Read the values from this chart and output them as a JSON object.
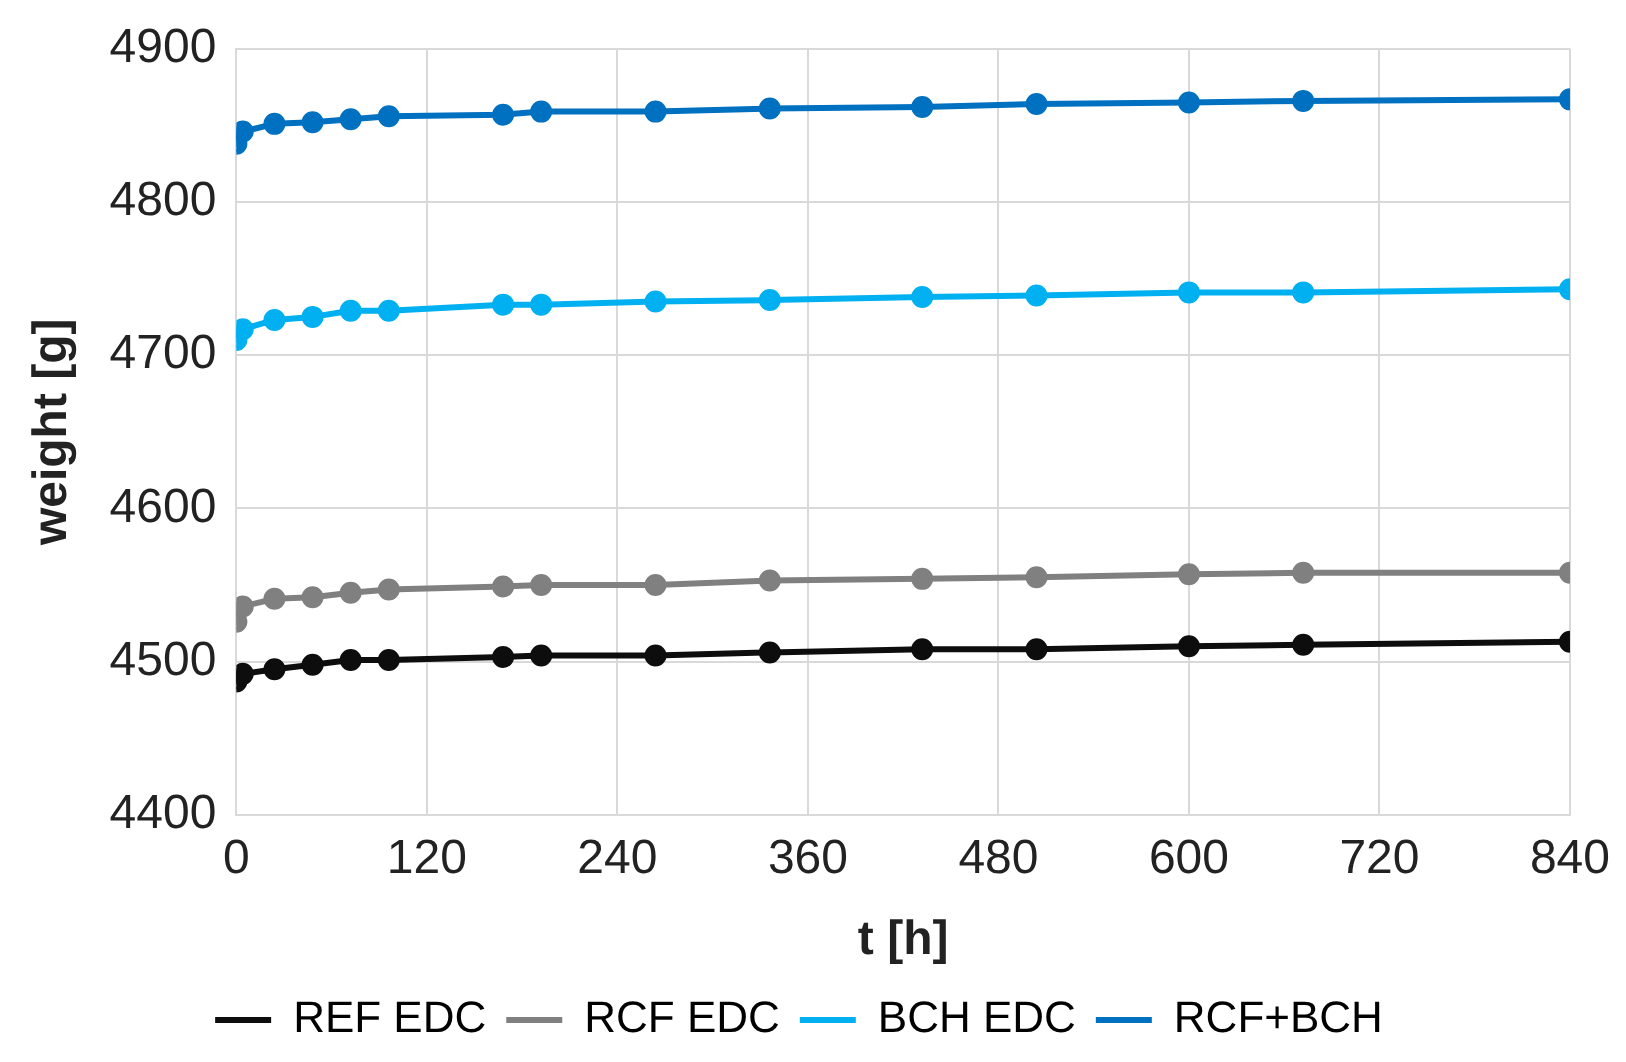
{
  "chart_data": {
    "type": "line",
    "xlabel": "t [h]",
    "ylabel": "weight [g]",
    "x": [
      0,
      4,
      24,
      48,
      72,
      96,
      168,
      192,
      264,
      336,
      432,
      504,
      600,
      672,
      840
    ],
    "xlim": [
      0,
      840
    ],
    "xticks": [
      0,
      120,
      240,
      360,
      480,
      600,
      720,
      840
    ],
    "ylim": [
      4400,
      4900
    ],
    "yticks": [
      4400,
      4500,
      4600,
      4700,
      4800,
      4900
    ],
    "grid": true,
    "legend": "bottom",
    "marker": "circle",
    "line_style": "solid",
    "series": [
      {
        "name": "REF EDC",
        "color": "#0d0d0d",
        "values": [
          4487,
          4492,
          4495,
          4498,
          4501,
          4501,
          4503,
          4504,
          4504,
          4506,
          4508,
          4508,
          4510,
          4511,
          4513
        ]
      },
      {
        "name": "RCF EDC",
        "color": "#808080",
        "values": [
          4526,
          4536,
          4541,
          4542,
          4545,
          4547,
          4549,
          4550,
          4550,
          4553,
          4554,
          4555,
          4557,
          4558,
          4558
        ]
      },
      {
        "name": "BCH EDC",
        "color": "#00b0f0",
        "values": [
          4710,
          4717,
          4723,
          4725,
          4729,
          4729,
          4733,
          4733,
          4735,
          4736,
          4738,
          4739,
          4741,
          4741,
          4743
        ]
      },
      {
        "name": "RCF+BCH",
        "color": "#0070c0",
        "values": [
          4838,
          4846,
          4851,
          4852,
          4854,
          4856,
          4857,
          4859,
          4859,
          4861,
          4862,
          4864,
          4865,
          4866,
          4867
        ]
      }
    ]
  }
}
